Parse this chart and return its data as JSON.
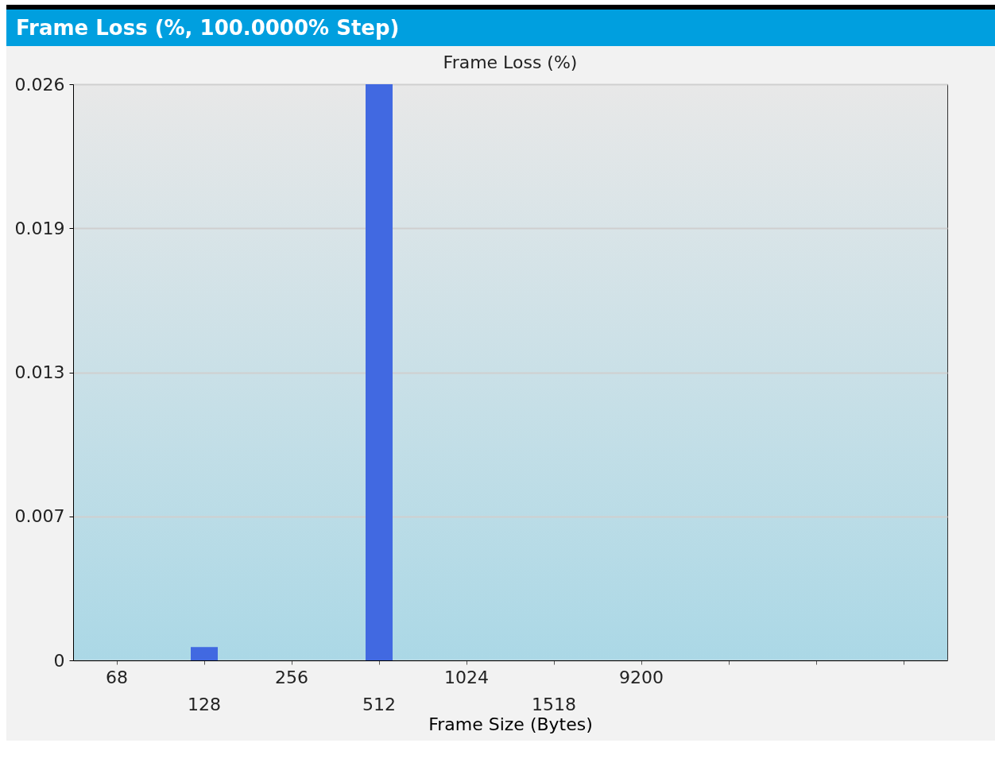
{
  "chart_data": {
    "type": "bar",
    "title": "Frame Loss (%, 100.0000% Step)",
    "subtitle": "Frame Loss (%)",
    "xlabel": "Frame Size (Bytes)",
    "categories": [
      "68",
      "128",
      "256",
      "512",
      "1024",
      "1518",
      "9200",
      null,
      null,
      null
    ],
    "values": [
      0,
      0.0006,
      0,
      0.026,
      0,
      0,
      0,
      null,
      null,
      null
    ],
    "color": "#4169e1",
    "ylim": [
      0,
      0.026
    ],
    "yticks": [
      0,
      {
        "value": 0.0065,
        "label": "0.007"
      },
      0.013,
      {
        "value": 0.0195,
        "label": "0.019"
      },
      0.026
    ],
    "grid": "y"
  }
}
